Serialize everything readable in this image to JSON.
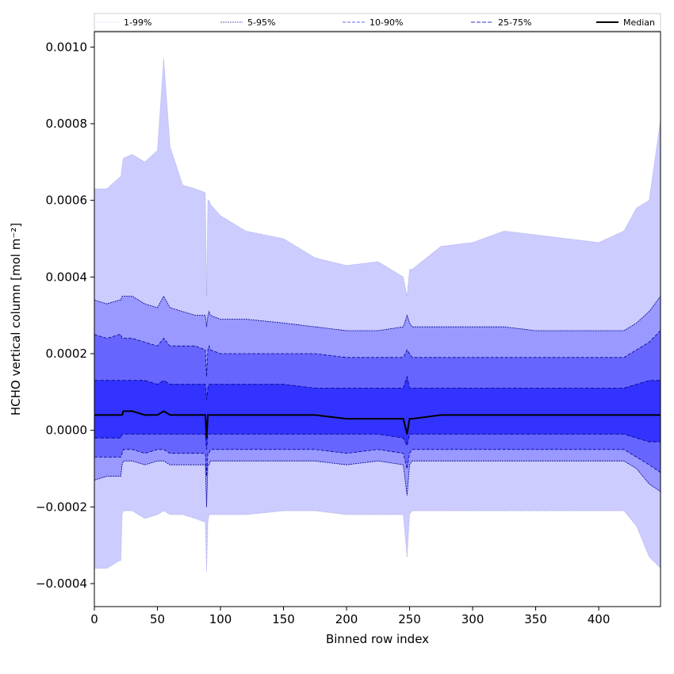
{
  "chart_data": {
    "type": "area",
    "title": "",
    "xlabel": "Binned row index",
    "ylabel": "HCHO vertical column [mol m⁻²]",
    "xlim": [
      0,
      449
    ],
    "ylim": [
      -0.00046,
      0.00104
    ],
    "xticks": [
      0,
      50,
      100,
      150,
      200,
      250,
      300,
      350,
      400
    ],
    "xtick_labels": [
      "0",
      "50",
      "100",
      "150",
      "200",
      "250",
      "300",
      "350",
      "400"
    ],
    "yticks": [
      -0.0004,
      -0.0002,
      0.0,
      0.0002,
      0.0004,
      0.0006,
      0.0008,
      0.001
    ],
    "ytick_labels": [
      "−0.0004",
      "−0.0002",
      "0.0000",
      "0.0002",
      "0.0004",
      "0.0006",
      "0.0008",
      "0.0010"
    ],
    "grid": false,
    "legend_position": "top",
    "x": [
      0,
      10,
      20,
      21,
      22,
      23,
      30,
      40,
      50,
      55,
      60,
      70,
      80,
      88,
      89,
      90,
      91,
      92,
      100,
      120,
      150,
      175,
      200,
      225,
      245,
      248,
      250,
      252,
      275,
      300,
      325,
      350,
      375,
      400,
      420,
      430,
      440,
      449
    ],
    "series": [
      {
        "name": "1-99%",
        "kind": "band",
        "color": "#ccccff",
        "lower": [
          -0.00036,
          -0.00036,
          -0.00034,
          -0.00034,
          -0.00022,
          -0.00021,
          -0.00021,
          -0.00023,
          -0.00022,
          -0.00021,
          -0.00022,
          -0.00022,
          -0.00023,
          -0.00024,
          -0.00037,
          -0.00024,
          -0.00022,
          -0.00022,
          -0.00022,
          -0.00022,
          -0.00021,
          -0.00021,
          -0.00022,
          -0.00022,
          -0.00022,
          -0.00033,
          -0.00022,
          -0.00021,
          -0.00021,
          -0.00021,
          -0.00021,
          -0.00021,
          -0.00021,
          -0.00021,
          -0.00021,
          -0.00025,
          -0.00033,
          -0.00036
        ],
        "upper": [
          0.00063,
          0.00063,
          0.00066,
          0.00066,
          0.00069,
          0.00071,
          0.00072,
          0.0007,
          0.00073,
          0.00097,
          0.00074,
          0.00064,
          0.00063,
          0.00062,
          0.00035,
          0.0006,
          0.0006,
          0.00059,
          0.00056,
          0.00052,
          0.0005,
          0.00045,
          0.00043,
          0.00044,
          0.0004,
          0.00035,
          0.00042,
          0.00042,
          0.00048,
          0.00049,
          0.00052,
          0.00051,
          0.0005,
          0.00049,
          0.00052,
          0.00058,
          0.0006,
          0.00081
        ]
      },
      {
        "name": "5-95%",
        "kind": "band",
        "color": "#9999ff",
        "lower": [
          -0.00013,
          -0.00012,
          -0.00012,
          -0.00012,
          -9e-05,
          -8e-05,
          -8e-05,
          -9e-05,
          -8e-05,
          -8e-05,
          -9e-05,
          -9e-05,
          -9e-05,
          -9e-05,
          -0.0002,
          -9e-05,
          -9e-05,
          -8e-05,
          -8e-05,
          -8e-05,
          -8e-05,
          -8e-05,
          -9e-05,
          -8e-05,
          -9e-05,
          -0.00017,
          -9e-05,
          -8e-05,
          -8e-05,
          -8e-05,
          -8e-05,
          -8e-05,
          -8e-05,
          -8e-05,
          -8e-05,
          -0.0001,
          -0.00014,
          -0.00016
        ],
        "upper": [
          0.00034,
          0.00033,
          0.00034,
          0.00034,
          0.00035,
          0.00035,
          0.00035,
          0.00033,
          0.00032,
          0.00035,
          0.00032,
          0.00031,
          0.0003,
          0.0003,
          0.00027,
          0.0003,
          0.00031,
          0.0003,
          0.00029,
          0.00029,
          0.00028,
          0.00027,
          0.00026,
          0.00026,
          0.00027,
          0.0003,
          0.00028,
          0.00027,
          0.00027,
          0.00027,
          0.00027,
          0.00026,
          0.00026,
          0.00026,
          0.00026,
          0.00028,
          0.00031,
          0.00035
        ]
      },
      {
        "name": "10-90%",
        "kind": "band",
        "color": "#6666ff",
        "lower": [
          -7e-05,
          -7e-05,
          -7e-05,
          -7e-05,
          -6e-05,
          -5e-05,
          -5e-05,
          -6e-05,
          -5e-05,
          -5e-05,
          -6e-05,
          -6e-05,
          -6e-05,
          -6e-05,
          -0.00012,
          -6e-05,
          -6e-05,
          -5e-05,
          -5e-05,
          -5e-05,
          -5e-05,
          -5e-05,
          -6e-05,
          -5e-05,
          -6e-05,
          -0.0001,
          -6e-05,
          -5e-05,
          -5e-05,
          -5e-05,
          -5e-05,
          -5e-05,
          -5e-05,
          -5e-05,
          -5e-05,
          -7e-05,
          -9e-05,
          -0.00011
        ],
        "upper": [
          0.00025,
          0.00024,
          0.00025,
          0.00025,
          0.00024,
          0.00024,
          0.00024,
          0.00023,
          0.00022,
          0.00024,
          0.00022,
          0.00022,
          0.00022,
          0.00021,
          0.00014,
          0.00021,
          0.00022,
          0.00021,
          0.0002,
          0.0002,
          0.0002,
          0.0002,
          0.00019,
          0.00019,
          0.00019,
          0.00021,
          0.0002,
          0.00019,
          0.00019,
          0.00019,
          0.00019,
          0.00019,
          0.00019,
          0.00019,
          0.00019,
          0.00021,
          0.00023,
          0.00026
        ]
      },
      {
        "name": "25-75%",
        "kind": "band",
        "color": "#3333ff",
        "lower": [
          -2e-05,
          -2e-05,
          -2e-05,
          -2e-05,
          -1e-05,
          -1e-05,
          -1e-05,
          -1e-05,
          -1e-05,
          -1e-05,
          -1e-05,
          -1e-05,
          -1e-05,
          -1e-05,
          -5e-05,
          -1e-05,
          -1e-05,
          -1e-05,
          -1e-05,
          -1e-05,
          -1e-05,
          -1e-05,
          -1e-05,
          -1e-05,
          -2e-05,
          -4e-05,
          -1e-05,
          -1e-05,
          -1e-05,
          -1e-05,
          -1e-05,
          -1e-05,
          -1e-05,
          -1e-05,
          -1e-05,
          -2e-05,
          -3e-05,
          -3e-05
        ],
        "upper": [
          0.00013,
          0.00013,
          0.00013,
          0.00013,
          0.00013,
          0.00013,
          0.00013,
          0.00013,
          0.00012,
          0.00013,
          0.00012,
          0.00012,
          0.00012,
          0.00012,
          8e-05,
          0.00011,
          0.00012,
          0.00012,
          0.00012,
          0.00012,
          0.00012,
          0.00011,
          0.00011,
          0.00011,
          0.00011,
          0.00014,
          0.00011,
          0.00011,
          0.00011,
          0.00011,
          0.00011,
          0.00011,
          0.00011,
          0.00011,
          0.00011,
          0.00012,
          0.00013,
          0.00013
        ]
      },
      {
        "name": "Median",
        "kind": "line",
        "color": "#000000",
        "values": [
          4e-05,
          4e-05,
          4e-05,
          4e-05,
          4e-05,
          5e-05,
          5e-05,
          4e-05,
          4e-05,
          5e-05,
          4e-05,
          4e-05,
          4e-05,
          4e-05,
          -2e-05,
          4e-05,
          4e-05,
          4e-05,
          4e-05,
          4e-05,
          4e-05,
          4e-05,
          3e-05,
          3e-05,
          3e-05,
          -1e-05,
          3e-05,
          3e-05,
          4e-05,
          4e-05,
          4e-05,
          4e-05,
          4e-05,
          4e-05,
          4e-05,
          4e-05,
          4e-05,
          4e-05
        ]
      }
    ]
  }
}
